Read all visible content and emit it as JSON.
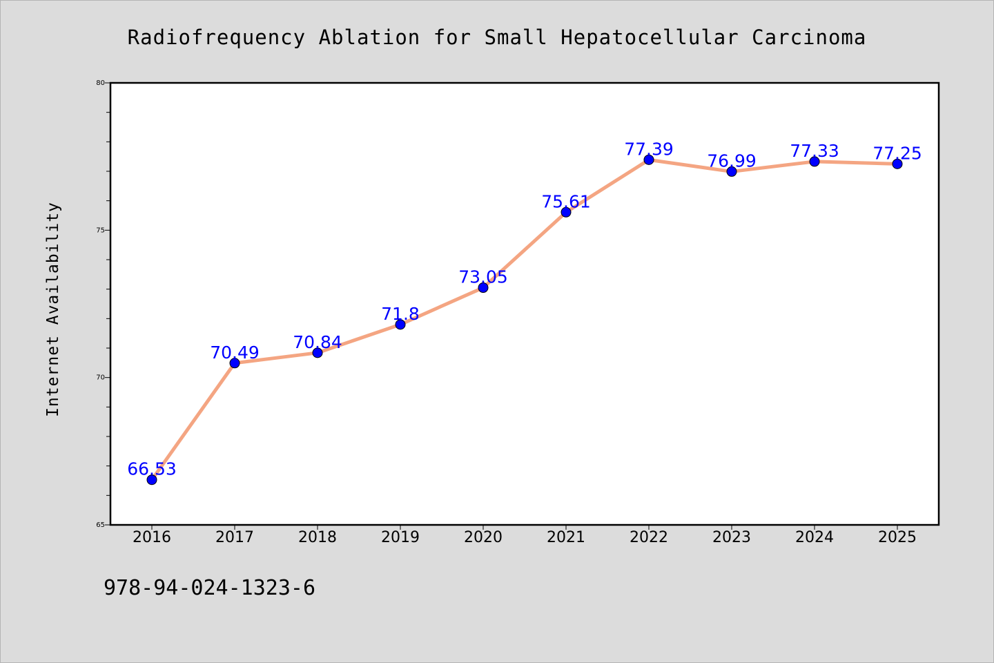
{
  "chart_data": {
    "type": "line",
    "title": "Radiofrequency Ablation for Small Hepatocellular Carcinoma",
    "xlabel": "",
    "ylabel": "Internet Availability",
    "x": [
      "2016",
      "2017",
      "2018",
      "2019",
      "2020",
      "2021",
      "2022",
      "2023",
      "2024",
      "2025"
    ],
    "series": [
      {
        "values": [
          66.53,
          70.49,
          70.84,
          71.8,
          73.05,
          75.61,
          77.39,
          76.99,
          77.33,
          77.25
        ],
        "data_labels": [
          "66.53",
          "70.49",
          "70.84",
          "71.8",
          "73.05",
          "75.61",
          "77.39",
          "76.99",
          "77.33",
          "77.25"
        ],
        "line_color": "#f4a582",
        "marker_color": "#0000ff"
      }
    ],
    "ylim": [
      65,
      80
    ],
    "y_ticks": [
      "65",
      "70",
      "75",
      "80"
    ],
    "y_tick_values": [
      65,
      70,
      75,
      80
    ],
    "y_minor_step": 1,
    "grid": false,
    "legend": "none"
  },
  "footnote": "978-94-024-1323-6",
  "colors": {
    "background": "#dcdcdc",
    "plot_background": "#ffffff",
    "axis": "#000000",
    "label_text": "#0000ff"
  }
}
